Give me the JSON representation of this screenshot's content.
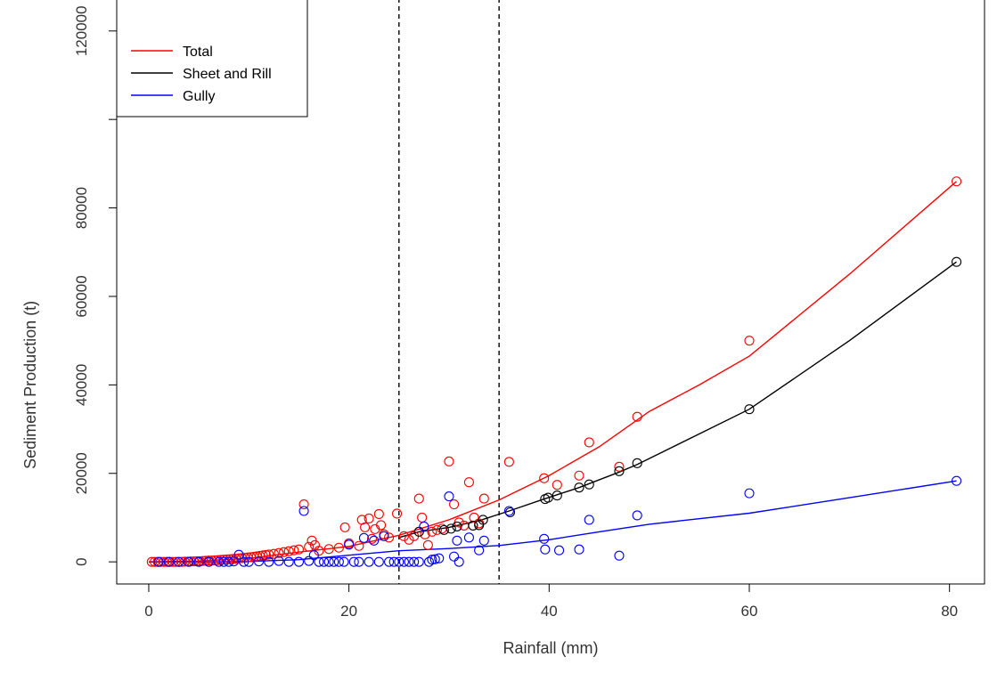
{
  "chart_data": {
    "type": "scatter",
    "title": "",
    "xlabel": "Rainfall (mm)",
    "ylabel": "Sediment Production (t)",
    "xlim": [
      -3.2,
      83.5
    ],
    "ylim": [
      -5000,
      127000
    ],
    "x_ticks": [
      0,
      20,
      40,
      60,
      80
    ],
    "x_tick_labels": [
      "0",
      "20",
      "40",
      "60",
      "80"
    ],
    "y_ticks": [
      0,
      20000,
      40000,
      60000,
      80000,
      100000,
      120000
    ],
    "y_tick_labels": [
      "0",
      "20000",
      "40000",
      "60000",
      "80000",
      "",
      "120000"
    ],
    "vlines": [
      25,
      35
    ],
    "legend": {
      "position": "top-left",
      "entries": [
        {
          "label": "Total",
          "color": "#ff0000"
        },
        {
          "label": "Sheet and Rill",
          "color": "#000000"
        },
        {
          "label": "Gully",
          "color": "#0000ff"
        }
      ]
    },
    "series": [
      {
        "name": "Total",
        "color": "#ff0000",
        "points": [
          [
            0.3,
            0
          ],
          [
            0.6,
            0
          ],
          [
            0.9,
            0
          ],
          [
            1.2,
            0
          ],
          [
            1.5,
            0
          ],
          [
            1.8,
            0
          ],
          [
            2.1,
            0
          ],
          [
            2.4,
            0
          ],
          [
            2.7,
            0
          ],
          [
            3.0,
            0
          ],
          [
            3.3,
            0
          ],
          [
            3.6,
            50
          ],
          [
            3.9,
            50
          ],
          [
            4.2,
            100
          ],
          [
            4.5,
            100
          ],
          [
            4.8,
            150
          ],
          [
            5.1,
            150
          ],
          [
            5.4,
            200
          ],
          [
            5.7,
            250
          ],
          [
            6.0,
            300
          ],
          [
            6.3,
            300
          ],
          [
            6.6,
            350
          ],
          [
            6.9,
            400
          ],
          [
            7.2,
            450
          ],
          [
            7.5,
            500
          ],
          [
            7.8,
            550
          ],
          [
            8.1,
            600
          ],
          [
            8.4,
            650
          ],
          [
            8.7,
            700
          ],
          [
            9.0,
            800
          ],
          [
            9.3,
            850
          ],
          [
            9.6,
            900
          ],
          [
            9.9,
            1000
          ],
          [
            10.2,
            1050
          ],
          [
            10.5,
            1150
          ],
          [
            10.8,
            1250
          ],
          [
            11.1,
            1350
          ],
          [
            11.4,
            1450
          ],
          [
            11.7,
            1550
          ],
          [
            12.0,
            1650
          ],
          [
            12.5,
            1800
          ],
          [
            13.0,
            2000
          ],
          [
            13.5,
            2200
          ],
          [
            14.0,
            2400
          ],
          [
            14.5,
            2600
          ],
          [
            15.0,
            2800
          ],
          [
            15.5,
            13000
          ],
          [
            16.0,
            3400
          ],
          [
            16.3,
            4800
          ],
          [
            16.6,
            3800
          ],
          [
            17.0,
            2500
          ],
          [
            18.0,
            2900
          ],
          [
            19.0,
            3200
          ],
          [
            19.6,
            7800
          ],
          [
            20.0,
            4200
          ],
          [
            21.0,
            3600
          ],
          [
            21.3,
            9500
          ],
          [
            21.6,
            7800
          ],
          [
            22.0,
            9800
          ],
          [
            22.3,
            5200
          ],
          [
            22.6,
            7400
          ],
          [
            23.0,
            10800
          ],
          [
            23.2,
            8300
          ],
          [
            23.5,
            6200
          ],
          [
            24.0,
            5500
          ],
          [
            24.8,
            10900
          ],
          [
            25.5,
            5800
          ],
          [
            26.0,
            5000
          ],
          [
            26.5,
            5800
          ],
          [
            27.0,
            14300
          ],
          [
            27.3,
            10000
          ],
          [
            27.6,
            6200
          ],
          [
            27.9,
            3800
          ],
          [
            28.3,
            6800
          ],
          [
            28.8,
            7200
          ],
          [
            29.3,
            7500
          ],
          [
            30.0,
            22700
          ],
          [
            30.5,
            13000
          ],
          [
            31.0,
            8900
          ],
          [
            31.5,
            8200
          ],
          [
            32.0,
            18000
          ],
          [
            32.5,
            10000
          ],
          [
            33.0,
            8700
          ],
          [
            33.5,
            14300
          ],
          [
            36.0,
            22600
          ],
          [
            39.5,
            18900
          ],
          [
            40.8,
            17400
          ],
          [
            43.0,
            19500
          ],
          [
            44.0,
            27000
          ],
          [
            47.0,
            21500
          ],
          [
            48.8,
            32800
          ],
          [
            60.0,
            50000
          ],
          [
            80.7,
            86000
          ]
        ]
      },
      {
        "name": "Sheet and Rill",
        "color": "#000000",
        "points": [
          [
            27.0,
            6800
          ],
          [
            29.5,
            7200
          ],
          [
            30.2,
            7500
          ],
          [
            30.8,
            8000
          ],
          [
            32.4,
            8200
          ],
          [
            33.0,
            8300
          ],
          [
            33.4,
            9500
          ],
          [
            36.1,
            11200
          ],
          [
            39.6,
            14200
          ],
          [
            39.9,
            14500
          ],
          [
            40.8,
            15000
          ],
          [
            43.0,
            16800
          ],
          [
            44.0,
            17500
          ],
          [
            47.0,
            20500
          ],
          [
            48.8,
            22300
          ],
          [
            60.0,
            34500
          ],
          [
            80.7,
            67800
          ]
        ]
      },
      {
        "name": "Gully",
        "color": "#0000ff",
        "points": [
          [
            1.0,
            0
          ],
          [
            2.0,
            0
          ],
          [
            3.0,
            0
          ],
          [
            4.0,
            0
          ],
          [
            5.0,
            0
          ],
          [
            6.0,
            0
          ],
          [
            7.0,
            0
          ],
          [
            7.5,
            0
          ],
          [
            8.0,
            0
          ],
          [
            8.5,
            100
          ],
          [
            9.0,
            1600
          ],
          [
            9.5,
            0
          ],
          [
            10.0,
            0
          ],
          [
            11.0,
            100
          ],
          [
            12.0,
            0
          ],
          [
            13.0,
            200
          ],
          [
            14.0,
            0
          ],
          [
            15.0,
            0
          ],
          [
            15.5,
            11500
          ],
          [
            16.0,
            200
          ],
          [
            16.5,
            1500
          ],
          [
            17.0,
            0
          ],
          [
            17.5,
            0
          ],
          [
            18.0,
            0
          ],
          [
            18.5,
            0
          ],
          [
            19.0,
            0
          ],
          [
            19.5,
            0
          ],
          [
            20.0,
            3900
          ],
          [
            20.5,
            0
          ],
          [
            21.0,
            0
          ],
          [
            21.5,
            5400
          ],
          [
            22.0,
            0
          ],
          [
            22.5,
            4800
          ],
          [
            23.0,
            0
          ],
          [
            23.5,
            5800
          ],
          [
            24.0,
            0
          ],
          [
            24.5,
            0
          ],
          [
            25.0,
            0
          ],
          [
            25.5,
            0
          ],
          [
            26.0,
            0
          ],
          [
            26.5,
            0
          ],
          [
            27.0,
            0
          ],
          [
            27.5,
            8000
          ],
          [
            28.0,
            0
          ],
          [
            28.3,
            500
          ],
          [
            28.6,
            600
          ],
          [
            29.0,
            800
          ],
          [
            30.0,
            14800
          ],
          [
            30.5,
            1200
          ],
          [
            30.8,
            4800
          ],
          [
            31.0,
            0
          ],
          [
            32.0,
            5500
          ],
          [
            33.0,
            2600
          ],
          [
            33.5,
            4800
          ],
          [
            36.0,
            11500
          ],
          [
            39.5,
            5200
          ],
          [
            39.6,
            2800
          ],
          [
            41.0,
            2600
          ],
          [
            43.0,
            2800
          ],
          [
            44.0,
            9500
          ],
          [
            47.0,
            1400
          ],
          [
            48.8,
            10500
          ],
          [
            60.0,
            15500
          ],
          [
            80.7,
            18300
          ]
        ]
      }
    ],
    "fitted_curves": [
      {
        "name": "Total",
        "color": "#ff0000",
        "points": [
          [
            0,
            0
          ],
          [
            5,
            200
          ],
          [
            10,
            800
          ],
          [
            15,
            2200
          ],
          [
            20,
            3500
          ],
          [
            25,
            6000
          ],
          [
            30,
            9500
          ],
          [
            35,
            14000
          ],
          [
            40,
            19500
          ],
          [
            45,
            26000
          ],
          [
            50,
            34000
          ],
          [
            55,
            40000
          ],
          [
            60,
            46500
          ],
          [
            70,
            65000
          ],
          [
            80.7,
            86000
          ]
        ]
      },
      {
        "name": "Sheet and Rill",
        "color": "#000000",
        "points": [
          [
            25,
            5500
          ],
          [
            27,
            6800
          ],
          [
            30,
            7800
          ],
          [
            33,
            9300
          ],
          [
            36,
            11500
          ],
          [
            39.5,
            14200
          ],
          [
            43,
            16800
          ],
          [
            47,
            20300
          ],
          [
            48.8,
            22000
          ],
          [
            60,
            34500
          ],
          [
            70,
            50000
          ],
          [
            80.7,
            67800
          ]
        ]
      },
      {
        "name": "Gully",
        "color": "#0000ff",
        "points": [
          [
            0,
            0
          ],
          [
            5,
            0
          ],
          [
            10,
            100
          ],
          [
            15,
            500
          ],
          [
            20,
            1500
          ],
          [
            25,
            2500
          ],
          [
            30,
            3000
          ],
          [
            35,
            3700
          ],
          [
            40,
            5000
          ],
          [
            45,
            6800
          ],
          [
            50,
            8500
          ],
          [
            60,
            11000
          ],
          [
            70,
            14500
          ],
          [
            80.7,
            18300
          ]
        ]
      }
    ]
  }
}
